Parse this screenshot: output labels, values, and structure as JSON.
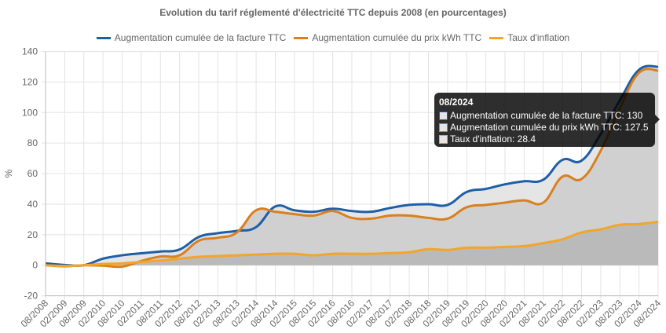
{
  "chart_data": {
    "type": "line",
    "title": "Evolution du tarif réglementé d'électricité TTC depuis 2008 (en pourcentages)",
    "xlabel": "",
    "ylabel": "%",
    "ylim": [
      -20,
      140
    ],
    "yticks": [
      140,
      120,
      100,
      80,
      60,
      40,
      20,
      0,
      -20
    ],
    "grid": true,
    "legend_position": "top",
    "categories": [
      "08/2008",
      "02/2009",
      "08/2009",
      "02/2010",
      "08/2010",
      "02/2011",
      "08/2011",
      "02/2012",
      "08/2012",
      "02/2013",
      "08/2013",
      "02/2014",
      "08/2014",
      "02/2015",
      "08/2015",
      "02/2016",
      "08/2016",
      "02/2017",
      "08/2017",
      "02/2018",
      "08/2018",
      "02/2019",
      "08/2019",
      "02/2020",
      "08/2020",
      "02/2021",
      "08/2021",
      "02/2022",
      "08/2022",
      "02/2023",
      "08/2023",
      "02/2024",
      "08/2024"
    ],
    "series": [
      {
        "name": "Augmentation cumulée de la facture TTC",
        "color": "#1f5fa6",
        "fill": "#e5e5e5",
        "values": [
          1.3,
          0.2,
          0,
          4.3,
          6.5,
          7.8,
          9,
          10.3,
          18.5,
          21,
          22.5,
          25,
          38.5,
          36,
          35,
          37,
          35.5,
          35,
          37.5,
          39.5,
          40,
          39.5,
          48,
          50,
          53,
          55,
          56,
          69,
          68.5,
          86,
          108,
          128,
          130
        ]
      },
      {
        "name": "Augmentation cumulée du prix kWh TTC",
        "color": "#d9801f",
        "fill": "#d0d0d0",
        "values": [
          0,
          -0.7,
          0,
          -0.3,
          -0.9,
          2.8,
          5.7,
          6.5,
          16,
          18,
          21.5,
          36,
          35,
          33.5,
          32.5,
          35.5,
          31,
          30.5,
          32.5,
          32.5,
          31,
          30.5,
          38,
          39.5,
          41,
          42.5,
          41,
          58,
          56.5,
          75,
          103,
          126,
          127.5
        ]
      },
      {
        "name": "Taux d'inflation",
        "color": "#f2a52a",
        "fill": "#bababa",
        "values": [
          0,
          -0.5,
          0,
          0.8,
          1.2,
          2.2,
          3.1,
          4.3,
          5.5,
          6,
          6.5,
          7,
          7.5,
          7.5,
          6.5,
          7.5,
          7.5,
          7.5,
          8,
          8.5,
          10.5,
          10,
          11.5,
          11.5,
          12,
          12.5,
          14.5,
          17,
          21.5,
          23.5,
          26.5,
          27,
          28.4
        ]
      }
    ]
  },
  "tooltip": {
    "title": "08/2024",
    "rows": [
      {
        "label": "Augmentation cumulée de la facture TTC: 130",
        "color": "#1f5fa6"
      },
      {
        "label": "Augmentation cumulée du prix kWh TTC: 127.5",
        "color": "#d9801f"
      },
      {
        "label": "Taux d'inflation: 28.4",
        "color": "#f2a52a"
      }
    ]
  }
}
